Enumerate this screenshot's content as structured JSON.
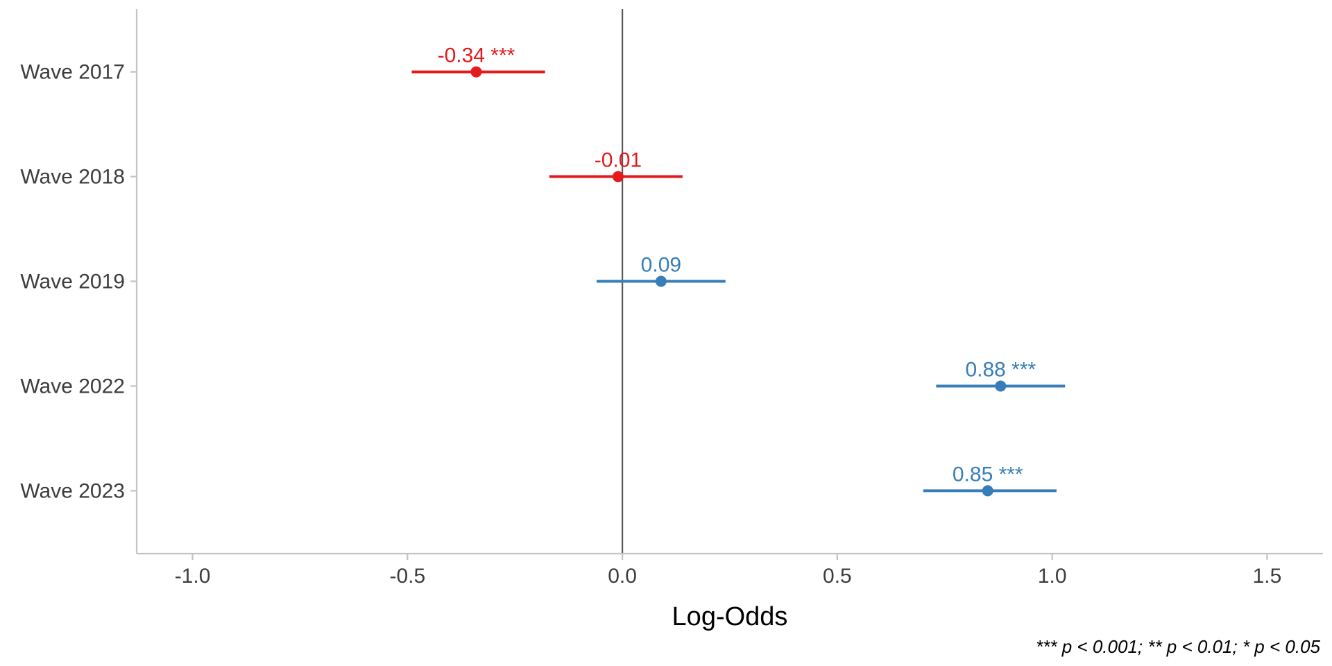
{
  "chart_data": {
    "type": "scatter",
    "subtype": "forest-coefficient-plot",
    "title": "",
    "xlabel": "Log-Odds",
    "ylabel": "",
    "categories": [
      "Wave 2017",
      "Wave 2018",
      "Wave 2019",
      "Wave 2022",
      "Wave 2023"
    ],
    "series": [
      {
        "name": "Wave 2017",
        "estimate": -0.34,
        "ci_low": -0.49,
        "ci_high": -0.18,
        "label": "-0.34 ***",
        "color_role": "negative"
      },
      {
        "name": "Wave 2018",
        "estimate": -0.01,
        "ci_low": -0.17,
        "ci_high": 0.14,
        "label": "-0.01",
        "color_role": "negative"
      },
      {
        "name": "Wave 2019",
        "estimate": 0.09,
        "ci_low": -0.06,
        "ci_high": 0.24,
        "label": "0.09",
        "color_role": "positive"
      },
      {
        "name": "Wave 2022",
        "estimate": 0.88,
        "ci_low": 0.73,
        "ci_high": 1.03,
        "label": "0.88 ***",
        "color_role": "positive"
      },
      {
        "name": "Wave 2023",
        "estimate": 0.85,
        "ci_low": 0.7,
        "ci_high": 1.01,
        "label": "0.85 ***",
        "color_role": "positive"
      }
    ],
    "x_ticks": [
      -1.0,
      -0.5,
      0.0,
      0.5,
      1.0,
      1.5
    ],
    "x_tick_labels": [
      "-1.0",
      "-0.5",
      "0.0",
      "0.5",
      "1.0",
      "1.5"
    ],
    "xlim": [
      -1.13,
      1.63
    ],
    "ref_line_x": 0,
    "grid": "off",
    "legend": "none",
    "footnote": "*** p < 0.001; ** p < 0.01; * p < 0.05"
  },
  "colors": {
    "negative": "#e41a1c",
    "positive": "#377eb8",
    "ref_line": "#595959",
    "axis_line": "#c3c3c3",
    "tick_mark": "#333333",
    "axis_text": "#3d3d3d",
    "title_text": "#000000",
    "background": "#ffffff"
  }
}
